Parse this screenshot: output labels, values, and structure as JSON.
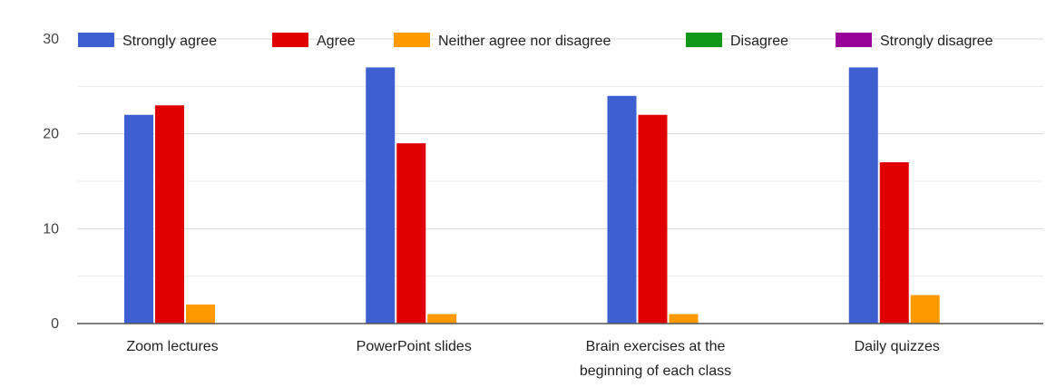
{
  "chart_data": {
    "type": "bar",
    "categories": [
      [
        "Zoom lectures"
      ],
      [
        "PowerPoint slides"
      ],
      [
        "Brain exercises at the",
        "beginning of each class"
      ],
      [
        "Daily quizzes"
      ]
    ],
    "series": [
      {
        "name": "Strongly agree",
        "color": "#3d5fd1",
        "values": [
          22,
          27,
          24,
          27
        ]
      },
      {
        "name": "Agree",
        "color": "#e00000",
        "values": [
          23,
          19,
          22,
          17
        ]
      },
      {
        "name": "Neither agree nor disagree",
        "color": "#ff9900",
        "values": [
          2,
          1,
          1,
          3
        ]
      },
      {
        "name": "Disagree",
        "color": "#109618",
        "values": [
          0,
          0,
          0,
          0
        ]
      },
      {
        "name": "Strongly disagree",
        "color": "#990099",
        "values": [
          0,
          0,
          0,
          0
        ]
      }
    ],
    "ylim": [
      0,
      30
    ],
    "yticks": [
      "0",
      "10",
      "20",
      "30"
    ],
    "grid": true,
    "legend": "top",
    "title": "",
    "xlabel": "",
    "ylabel": ""
  }
}
